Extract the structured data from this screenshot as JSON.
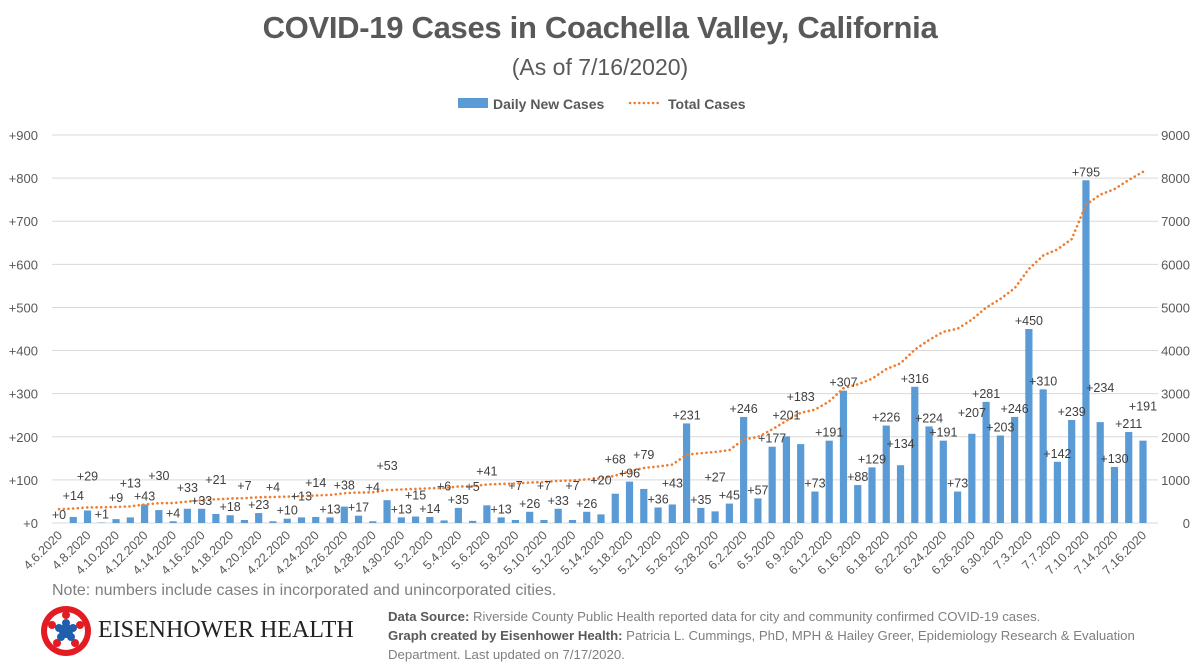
{
  "chart_data": {
    "type": "bar+line",
    "title": "COVID-19 Cases in Coachella Valley, California",
    "subtitle": "(As of 7/16/2020)",
    "legend": {
      "position": "top",
      "entries": [
        "Daily New Cases",
        "Total Cases"
      ]
    },
    "colors": {
      "bars": "#5B9BD5",
      "line": "#ED7D31",
      "grid": "#D9D9D9"
    },
    "grid": true,
    "left_axis": {
      "ylim": [
        0,
        900
      ],
      "ticks": [
        "+0",
        "+100",
        "+200",
        "+300",
        "+400",
        "+500",
        "+600",
        "+700",
        "+800",
        "+900"
      ]
    },
    "right_axis": {
      "ylim": [
        0,
        9000
      ],
      "ticks": [
        "0",
        "1000",
        "2000",
        "3000",
        "4000",
        "5000",
        "6000",
        "7000",
        "8000",
        "9000"
      ]
    },
    "x_tick_labels": [
      "4.6.2020",
      "4.8.2020",
      "4.10.2020",
      "4.12.2020",
      "4.14.2020",
      "4.16.2020",
      "4.18.2020",
      "4.20.2020",
      "4.22.2020",
      "4.24.2020",
      "4.26.2020",
      "4.28.2020",
      "4.30.2020",
      "5.2.2020",
      "5.4.2020",
      "5.6.2020",
      "5.8.2020",
      "5.10.2020",
      "5.12.2020",
      "5.14.2020",
      "5.18.2020",
      "5.21.2020",
      "5.26.2020",
      "5.28.2020",
      "6.2.2020",
      "6.5.2020",
      "6.9.2020",
      "6.12.2020",
      "6.16.2020",
      "6.18.2020",
      "6.22.2020",
      "6.24.2020",
      "6.26.2020",
      "6.30.2020",
      "7.3.2020",
      "7.7.2020",
      "7.10.2020",
      "7.14.2020",
      "7.16.2020"
    ],
    "series": [
      {
        "name": "Daily New Cases",
        "type": "bar",
        "values": [
          0,
          14,
          29,
          1,
          9,
          13,
          43,
          30,
          4,
          33,
          33,
          21,
          18,
          7,
          23,
          4,
          10,
          13,
          14,
          13,
          38,
          17,
          4,
          53,
          13,
          15,
          14,
          6,
          35,
          5,
          41,
          13,
          7,
          26,
          7,
          33,
          7,
          26,
          20,
          68,
          96,
          79,
          36,
          43,
          231,
          35,
          27,
          45,
          246,
          57,
          177,
          201,
          183,
          73,
          191,
          307,
          88,
          129,
          226,
          134,
          316,
          224,
          191,
          73,
          207,
          281,
          203,
          246,
          450,
          310,
          142,
          239,
          795,
          234,
          130,
          211,
          191
        ]
      },
      {
        "name": "Total Cases",
        "type": "line",
        "axis": "right",
        "values": [
          320,
          334,
          363,
          364,
          373,
          386,
          429,
          459,
          463,
          496,
          529,
          550,
          568,
          575,
          598,
          602,
          612,
          625,
          639,
          652,
          690,
          707,
          711,
          764,
          777,
          792,
          806,
          812,
          847,
          852,
          893,
          906,
          913,
          939,
          946,
          979,
          986,
          1012,
          1032,
          1100,
          1196,
          1275,
          1311,
          1354,
          1585,
          1620,
          1647,
          1692,
          1938,
          1995,
          2172,
          2373,
          2556,
          2629,
          2820,
          3127,
          3215,
          3344,
          3570,
          3704,
          4020,
          4244,
          4435,
          4508,
          4715,
          4996,
          5199,
          5445,
          5895,
          6205,
          6347,
          6586,
          7381,
          7615,
          7745,
          7956,
          8147
        ]
      }
    ]
  },
  "footer": {
    "note": "Note: numbers include cases in incorporated and unincorporated cities.",
    "brand": "EISENHOWER HEALTH",
    "source_label": "Data Source:",
    "source_text": " Riverside County Public Health reported data for city and community confirmed COVID-19 cases.",
    "created_label": "Graph created by Eisenhower Health:",
    "created_text": " Patricia L. Cummings, PhD, MPH & Hailey Greer, Epidemiology Research & Evaluation Department. Last updated on 7/17/2020."
  }
}
